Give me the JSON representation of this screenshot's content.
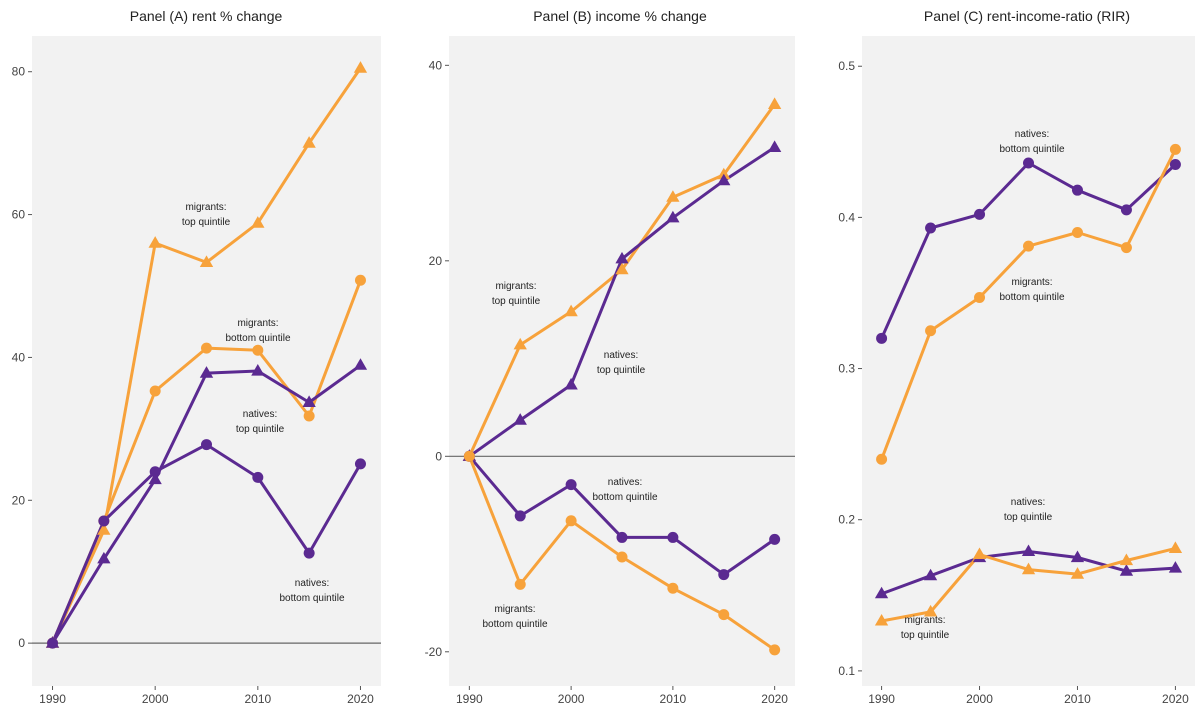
{
  "chart_data": [
    {
      "type": "line",
      "title": "Panel (A) rent % change",
      "xlabel": "",
      "ylabel": "",
      "x": [
        1990,
        1995,
        2000,
        2005,
        2010,
        2015,
        2020
      ],
      "xticks": [
        "1990",
        "2000",
        "2010",
        "2020"
      ],
      "yticks": [
        "0",
        "20",
        "40",
        "60",
        "80"
      ],
      "ylim": [
        -6,
        85
      ],
      "grid": false,
      "series": [
        {
          "name": "migrants: top quintile",
          "color": "#F7A23B",
          "marker": "triangle",
          "values": [
            0,
            15.8,
            56,
            53.3,
            58.8,
            70,
            80.5
          ]
        },
        {
          "name": "migrants: bottom quintile",
          "color": "#F7A23B",
          "marker": "circle",
          "values": [
            0,
            17.1,
            35.3,
            41.3,
            41,
            31.8,
            50.8
          ]
        },
        {
          "name": "natives: top quintile",
          "color": "#5B2A91",
          "marker": "triangle",
          "values": [
            0,
            11.8,
            22.9,
            37.8,
            38.1,
            33.7,
            38.9
          ]
        },
        {
          "name": "natives: bottom quintile",
          "color": "#5B2A91",
          "marker": "circle",
          "values": [
            0,
            17.1,
            24,
            27.8,
            23.2,
            12.6,
            25.1
          ]
        }
      ],
      "annotations": [
        {
          "lines": [
            "migrants:",
            "top quintile"
          ]
        },
        {
          "lines": [
            "migrants:",
            "bottom quintile"
          ]
        },
        {
          "lines": [
            "natives:",
            "top quintile"
          ]
        },
        {
          "lines": [
            "natives:",
            "bottom quintile"
          ]
        }
      ]
    },
    {
      "type": "line",
      "title": "Panel (B) income % change",
      "xlabel": "",
      "ylabel": "",
      "x": [
        1990,
        1995,
        2000,
        2005,
        2010,
        2015,
        2020
      ],
      "xticks": [
        "1990",
        "2000",
        "2010",
        "2020"
      ],
      "yticks": [
        "-20",
        "0",
        "20",
        "40"
      ],
      "ylim": [
        -23.5,
        43
      ],
      "grid": false,
      "series": [
        {
          "name": "migrants: top quintile",
          "color": "#F7A23B",
          "marker": "triangle",
          "values": [
            0,
            11.4,
            14.8,
            19.1,
            26.5,
            28.8,
            36
          ]
        },
        {
          "name": "natives: top quintile",
          "color": "#5B2A91",
          "marker": "triangle",
          "values": [
            0,
            3.7,
            7.3,
            20.2,
            24.4,
            28.2,
            31.6
          ]
        },
        {
          "name": "natives: bottom quintile",
          "color": "#5B2A91",
          "marker": "circle",
          "values": [
            0,
            -6.1,
            -2.9,
            -8.3,
            -8.3,
            -12.1,
            -8.5
          ]
        },
        {
          "name": "migrants: bottom quintile",
          "color": "#F7A23B",
          "marker": "circle",
          "values": [
            0,
            -13.1,
            -6.6,
            -10.3,
            -13.5,
            -16.2,
            -19.8
          ]
        }
      ],
      "annotations": [
        {
          "lines": [
            "migrants:",
            "top quintile"
          ]
        },
        {
          "lines": [
            "natives:",
            "top quintile"
          ]
        },
        {
          "lines": [
            "natives:",
            "bottom quintile"
          ]
        },
        {
          "lines": [
            "migrants:",
            "bottom quintile"
          ]
        }
      ]
    },
    {
      "type": "line",
      "title": "Panel (C) rent-income-ratio (RIR)",
      "xlabel": "",
      "ylabel": "",
      "x": [
        1990,
        1995,
        2000,
        2005,
        2010,
        2015,
        2020
      ],
      "xticks": [
        "1990",
        "2000",
        "2010",
        "2020"
      ],
      "yticks": [
        "0.1",
        "0.2",
        "0.3",
        "0.4",
        "0.5"
      ],
      "ylim": [
        0.09,
        0.52
      ],
      "grid": false,
      "series": [
        {
          "name": "natives: bottom quintile",
          "color": "#5B2A91",
          "marker": "circle",
          "values": [
            0.32,
            0.393,
            0.402,
            0.436,
            0.418,
            0.405,
            0.435
          ]
        },
        {
          "name": "migrants: bottom quintile",
          "color": "#F7A23B",
          "marker": "circle",
          "values": [
            0.24,
            0.325,
            0.347,
            0.381,
            0.39,
            0.38,
            0.445
          ]
        },
        {
          "name": "natives: top quintile",
          "color": "#5B2A91",
          "marker": "triangle",
          "values": [
            0.151,
            0.163,
            0.175,
            0.179,
            0.175,
            0.166,
            0.168
          ]
        },
        {
          "name": "migrants: top quintile",
          "color": "#F7A23B",
          "marker": "triangle",
          "values": [
            0.133,
            0.139,
            0.177,
            0.167,
            0.164,
            0.173,
            0.181
          ]
        }
      ],
      "annotations": [
        {
          "lines": [
            "natives:",
            "bottom quintile"
          ]
        },
        {
          "lines": [
            "migrants:",
            "bottom quintile"
          ]
        },
        {
          "lines": [
            "natives:",
            "top quintile"
          ]
        },
        {
          "lines": [
            "migrants:",
            "top quintile"
          ]
        }
      ]
    }
  ]
}
